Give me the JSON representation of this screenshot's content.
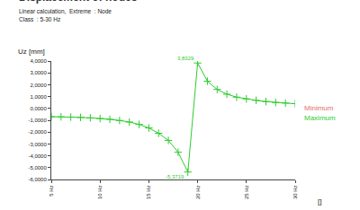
{
  "chart_data": {
    "type": "line",
    "title": "Displacement of nodes",
    "subtitle": [
      "Linear calculation,  Extreme  : Node",
      "Class  : 5-30 Hz"
    ],
    "y_label": "Uz [mm]",
    "x_label": "[]",
    "x": [
      5,
      6,
      7,
      8,
      9,
      10,
      11,
      12,
      13,
      14,
      15,
      16,
      17,
      18,
      19,
      20,
      21,
      22,
      23,
      24,
      25,
      26,
      27,
      28,
      29,
      30
    ],
    "series": [
      {
        "name": "Maximum",
        "color": "#2ecc2e",
        "marker": "cross",
        "line_style": "solid",
        "values": [
          -0.7,
          -0.71,
          -0.73,
          -0.76,
          -0.8,
          -0.85,
          -0.92,
          -1.02,
          -1.15,
          -1.35,
          -1.65,
          -2.1,
          -2.7,
          -3.7,
          -5.3719,
          3.8329,
          2.3,
          1.6,
          1.2,
          0.95,
          0.8,
          0.68,
          0.58,
          0.5,
          0.45,
          0.4
        ]
      }
    ],
    "annotations": [
      {
        "x": 19,
        "y": -5.3719,
        "text": "-5,3719"
      },
      {
        "x": 20,
        "y": 3.8329,
        "text": "3,8329"
      }
    ],
    "legend_texts": [
      {
        "text": "Minimum",
        "color": "#e07070"
      },
      {
        "text": "Maximum",
        "color": "#2ecc2e"
      }
    ],
    "xlim": [
      5,
      30
    ],
    "xticks": [
      {
        "value": 5,
        "label": "5 Hz"
      },
      {
        "value": 10,
        "label": "10 Hz"
      },
      {
        "value": 15,
        "label": "15 Hz"
      },
      {
        "value": 20,
        "label": "20 Hz"
      },
      {
        "value": 25,
        "label": "25 Hz"
      },
      {
        "value": 30,
        "label": "30 Hz"
      }
    ],
    "ylim": [
      -6,
      4
    ],
    "yticks": [
      {
        "value": 4,
        "label": "4,0000"
      },
      {
        "value": 3,
        "label": "3,0000"
      },
      {
        "value": 2,
        "label": "2,0000"
      },
      {
        "value": 1,
        "label": "1,0000"
      },
      {
        "value": 0,
        "label": "0,0000"
      },
      {
        "value": -1,
        "label": "-1,0000"
      },
      {
        "value": -2,
        "label": "-2,0000"
      },
      {
        "value": -3,
        "label": "-3,0000"
      },
      {
        "value": -4,
        "label": "-4,0000"
      },
      {
        "value": -5,
        "label": "-5,0000"
      },
      {
        "value": -6,
        "label": "-6,0000"
      }
    ],
    "grid": false
  }
}
